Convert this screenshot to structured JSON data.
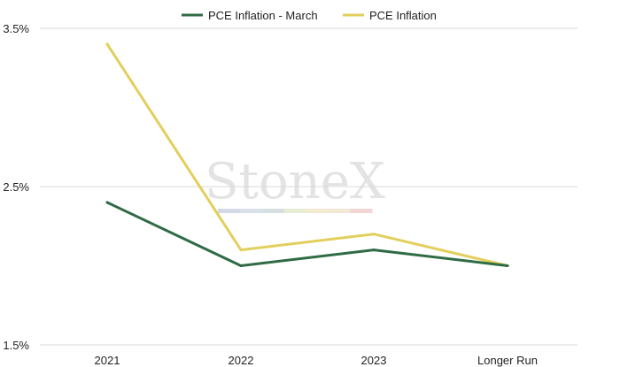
{
  "watermark": {
    "text": "StoneX",
    "registered_mark": "®",
    "stripe_colors": [
      "#d4d9e6",
      "#dadfe9",
      "#d6e0e0",
      "#e6ecd6",
      "#f3ead0",
      "#f3e7d6",
      "#f2d6d6"
    ]
  },
  "chart_data": {
    "type": "line",
    "title": "",
    "xlabel": "",
    "ylabel": "",
    "categories": [
      "2021",
      "2022",
      "2023",
      "Longer Run"
    ],
    "ylim": [
      1.5,
      3.5
    ],
    "yticks": [
      1.5,
      2.5,
      3.5
    ],
    "ytick_labels": [
      "1.5%",
      "2.5%",
      "3.5%"
    ],
    "grid": true,
    "legend_position": "top-center",
    "series": [
      {
        "name": "PCE Inflation - March",
        "values": [
          2.4,
          2.0,
          2.1,
          2.0
        ],
        "color": "#2f6b44"
      },
      {
        "name": "PCE Inflation",
        "values": [
          3.4,
          2.1,
          2.2,
          2.0
        ],
        "color": "#e2cf5c"
      }
    ]
  }
}
